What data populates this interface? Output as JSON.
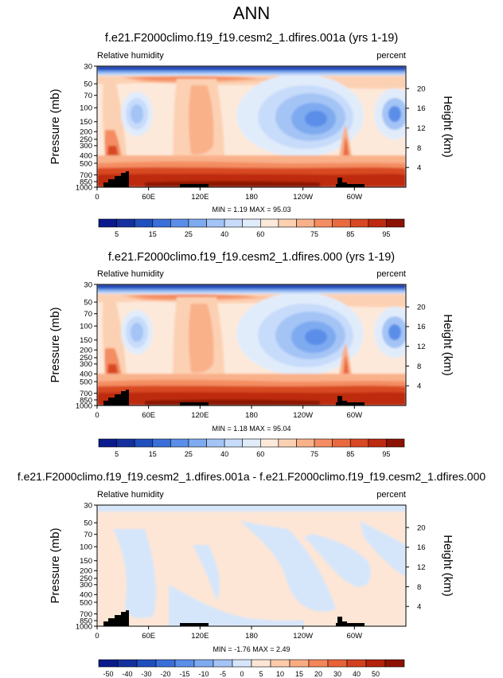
{
  "main_title": "ANN",
  "y_axis_title": "Pressure (mb)",
  "y2_axis_title": "Height (km)",
  "x_ticks": [
    "0",
    "60E",
    "120E",
    "180",
    "120W",
    "60W"
  ],
  "x_tick_lons": [
    0,
    60,
    120,
    180,
    240,
    300
  ],
  "pressure_ticks": [
    "30",
    "50",
    "70",
    "100",
    "150",
    "200",
    "250",
    "300",
    "400",
    "500",
    "700",
    "850",
    "1000"
  ],
  "pressure_values": [
    30,
    50,
    70,
    100,
    150,
    200,
    250,
    300,
    400,
    500,
    700,
    850,
    1000
  ],
  "height_ticks": [
    "20",
    "16",
    "12",
    "8",
    "4"
  ],
  "height_values": [
    20,
    16,
    12,
    8,
    4
  ],
  "panels": [
    {
      "title": "f.e21.F2000climo.f19_f19.cesm2_1.dfires.001a (yrs 1-19)",
      "left_label": "Relative humidity",
      "right_label": "percent",
      "stats": "MIN =   1.19  MAX = 95.03",
      "colorbar_labels": [
        "5",
        "15",
        "25",
        "40",
        "60",
        "75",
        "85",
        "95"
      ]
    },
    {
      "title": "f.e21.F2000climo.f19_f19.cesm2_1.dfires.000 (yrs 1-19)",
      "left_label": "Relative humidity",
      "right_label": "percent",
      "stats": "MIN =   1.18  MAX = 95.04",
      "colorbar_labels": [
        "5",
        "15",
        "25",
        "40",
        "60",
        "75",
        "85",
        "95"
      ]
    },
    {
      "title": "f.e21.F2000climo.f19_f19.cesm2_1.dfires.001a - f.e21.F2000climo.f19_f19.cesm2_1.dfires.000",
      "left_label": "Relative humidity",
      "right_label": "percent",
      "stats": "MIN =  -1.76  MAX =  2.49",
      "colorbar_labels": [
        "-50",
        "-40",
        "-30",
        "-20",
        "-15",
        "-10",
        "-5",
        "0",
        "5",
        "10",
        "15",
        "20",
        "30",
        "40",
        "50"
      ]
    }
  ],
  "chart_data": [
    {
      "type": "heatmap",
      "title": "f.e21.F2000climo.f19_f19.cesm2_1.dfires.001a (yrs 1-19)",
      "ylabel": "Pressure (mb)",
      "y2label": "Height (km)",
      "variable": "Relative humidity",
      "units": "percent",
      "x_range": [
        0,
        360
      ],
      "y_range": [
        30,
        1000
      ],
      "min": 1.19,
      "max": 95.03,
      "colorbar_levels": [
        5,
        10,
        15,
        20,
        25,
        30,
        40,
        50,
        60,
        65,
        70,
        75,
        80,
        85,
        90,
        95
      ],
      "colormap": [
        "#0a1a8c",
        "#13309e",
        "#1f4fbe",
        "#3a6fda",
        "#5a8ee8",
        "#7eaaf0",
        "#a4c4f6",
        "#c7dcfa",
        "#e1ecfb",
        "#fde9da",
        "#fcd1b3",
        "#f9b18a",
        "#f48d62",
        "#ea6a40",
        "#d84824",
        "#bd2a10",
        "#8c1204"
      ]
    },
    {
      "type": "heatmap",
      "title": "f.e21.F2000climo.f19_f19.cesm2_1.dfires.000 (yrs 1-19)",
      "ylabel": "Pressure (mb)",
      "y2label": "Height (km)",
      "variable": "Relative humidity",
      "units": "percent",
      "x_range": [
        0,
        360
      ],
      "y_range": [
        30,
        1000
      ],
      "min": 1.18,
      "max": 95.04,
      "colorbar_levels": [
        5,
        10,
        15,
        20,
        25,
        30,
        40,
        50,
        60,
        65,
        70,
        75,
        80,
        85,
        90,
        95
      ],
      "colormap": [
        "#0a1a8c",
        "#13309e",
        "#1f4fbe",
        "#3a6fda",
        "#5a8ee8",
        "#7eaaf0",
        "#a4c4f6",
        "#c7dcfa",
        "#e1ecfb",
        "#fde9da",
        "#fcd1b3",
        "#f9b18a",
        "#f48d62",
        "#ea6a40",
        "#d84824",
        "#bd2a10",
        "#8c1204"
      ]
    },
    {
      "type": "heatmap",
      "title": "f.e21.F2000climo.f19_f19.cesm2_1.dfires.001a - f.e21.F2000climo.f19_f19.cesm2_1.dfires.000",
      "ylabel": "Pressure (mb)",
      "y2label": "Height (km)",
      "variable": "Relative humidity",
      "units": "percent",
      "x_range": [
        0,
        360
      ],
      "y_range": [
        30,
        1000
      ],
      "min": -1.76,
      "max": 2.49,
      "colorbar_levels": [
        -50,
        -40,
        -30,
        -20,
        -15,
        -10,
        -5,
        0,
        5,
        10,
        15,
        20,
        30,
        40,
        50
      ],
      "colormap": [
        "#0a1a8c",
        "#13309e",
        "#1f4fbe",
        "#3a6fda",
        "#5a8ee8",
        "#7eaaf0",
        "#a4c4f6",
        "#d6e6fa",
        "#fde6d5",
        "#fccbaa",
        "#f9ab82",
        "#f3865a",
        "#e76238",
        "#d2401e",
        "#b2220c",
        "#8c1204"
      ]
    }
  ]
}
